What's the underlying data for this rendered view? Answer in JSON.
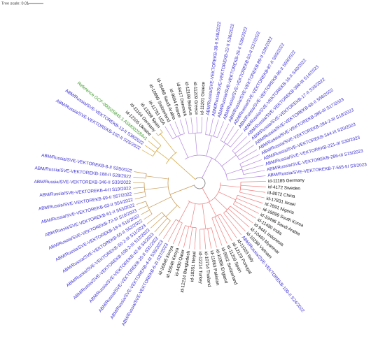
{
  "tree_scale": "Tree scale: 0.01",
  "leaves": [
    {
      "label": "ABM/Russia/SVE-VEKTOREKB-102-II S25/2022",
      "color": "#3a2fd0"
    },
    {
      "label": "ABM/Russia/SVE-VEKTOREKB-13-II S38/2022",
      "color": "#3a2fd0"
    },
    {
      "label": "Reference GCF-000025845.1 ASM002584v1",
      "color": "#3c9a2a"
    },
    {
      "label": "id-12106 Ukraine",
      "color": "#111111"
    },
    {
      "label": "id-11164 Germany",
      "color": "#111111"
    },
    {
      "label": "id-13208 Spain",
      "color": "#111111"
    },
    {
      "label": "id-11781 USA",
      "color": "#111111"
    },
    {
      "label": "id-10999 Switzerland",
      "color": "#111111"
    },
    {
      "label": "id-16468 Saudi Arabia",
      "color": "#111111"
    },
    {
      "label": "id-9694 France",
      "color": "#111111"
    },
    {
      "label": "id-8417 Denmark",
      "color": "#111111"
    },
    {
      "label": "id-12199 Belarus",
      "color": "#111111"
    },
    {
      "label": "id-11209 Greece",
      "color": "#111111"
    },
    {
      "label": "id-11201 Greece",
      "color": "#111111"
    },
    {
      "label": "ABM/Russia/SVE-VEKTOREKB-38-II S48/2022",
      "color": "#3a2fd0"
    },
    {
      "label": "ABM/Russia/SVE-VEKTOREKB-22-II S36/2022",
      "color": "#3a2fd0"
    },
    {
      "label": "ABM/Russia/SVE-VEKTOREKB-26-II S38/2022",
      "color": "#3a2fd0"
    },
    {
      "label": "ABM/Russia/SVE-VEKTOREKB-53-II S37/2022",
      "color": "#3a2fd0"
    },
    {
      "label": "ABM/Russia/SVE-VEKTOREKB-89-II S39/2022",
      "color": "#3a2fd0"
    },
    {
      "label": "ABM/Russia/SVE-VEKTOREKB-87-II S60/2022",
      "color": "#3a2fd0"
    },
    {
      "label": "ABM/Russia/SVE-VEKTOREKB-96-II S59/2022",
      "color": "#3a2fd0"
    },
    {
      "label": "ABM/Russia/SVE-VEKTOREKB-16-II S40/2022",
      "color": "#3a2fd0"
    },
    {
      "label": "ABM/Russia/SVE-VEKTOREKB-386-III S14/2023",
      "color": "#3a2fd0"
    },
    {
      "label": "ABM/Russia/SVE-VEKTOREKB-17-II S33/2022",
      "color": "#3a2fd0"
    },
    {
      "label": "ABM/Russia/SVE-VEKTOREKB-66-II S56/2022",
      "color": "#3a2fd0"
    },
    {
      "label": "ABM/Russia/SVE-VEKTOREKB-385-III S17/2023",
      "color": "#3a2fd0"
    },
    {
      "label": "ABM/Russia/SVE-VEKTOREKB-284-2-III S18/2023",
      "color": "#3a2fd0"
    },
    {
      "label": "ABM/Russia/SVE-VEKTOREKB-344-III S20/2023",
      "color": "#3a2fd0"
    },
    {
      "label": "ABM/Russia/SVE-VEKTOREKB-221-III S30/2023",
      "color": "#3a2fd0"
    },
    {
      "label": "ABM/Russia/SVE-VEKTOREKB-286-III S15/2023",
      "color": "#3a2fd0"
    },
    {
      "label": "ABM/Russia/SVE-VEKTOREKB-7-555-III S3/2023",
      "color": "#3a2fd0"
    },
    {
      "label": "id-11185 Germany",
      "color": "#111111"
    },
    {
      "label": "id-4172 Sweden",
      "color": "#111111"
    },
    {
      "label": "id-8072 China",
      "color": "#111111"
    },
    {
      "label": "id-17831 Israel",
      "color": "#111111"
    },
    {
      "label": "id-7891 Nigeria",
      "color": "#111111"
    },
    {
      "label": "id-18899 South Korea",
      "color": "#111111"
    },
    {
      "label": "id-19496 Saudi Arabia",
      "color": "#111111"
    },
    {
      "label": "id-11480 India",
      "color": "#111111"
    },
    {
      "label": "id-9441 Indonesia",
      "color": "#111111"
    },
    {
      "label": "id-10440 Myanmar",
      "color": "#111111"
    },
    {
      "label": "id-10288 Vietnam",
      "color": "#111111"
    },
    {
      "label": "ABM/Russia/SVE-VEKTOREKB-100-II S24/2022",
      "color": "#3a2fd0"
    },
    {
      "label": "id-11933 Italy",
      "color": "#111111"
    },
    {
      "label": "id-12120 Portugal",
      "color": "#111111"
    },
    {
      "label": "id-11209 Spain",
      "color": "#111111"
    },
    {
      "label": "id-9652 Switzerland",
      "color": "#111111"
    },
    {
      "label": "id-10388 England",
      "color": "#111111"
    },
    {
      "label": "id-11083 Pakistan",
      "color": "#111111"
    },
    {
      "label": "id-10714 Thailand",
      "color": "#111111"
    },
    {
      "label": "id-12214 Turkey",
      "color": "#111111"
    },
    {
      "label": "id-10351 Nepal",
      "color": "#111111"
    },
    {
      "label": "id-12214 Bangladesh",
      "color": "#111111"
    },
    {
      "label": "id-4430 Qatar",
      "color": "#111111"
    },
    {
      "label": "id-16648 Kenya",
      "color": "#111111"
    },
    {
      "label": "id-16845 Kenya",
      "color": "#111111"
    },
    {
      "label": "ABM/Russia/SVE-VEKTOREKB-6-III S37/2023",
      "color": "#3a2fd0"
    },
    {
      "label": "ABM/Russia/SVE-VEKTOREKB-4-III S36/2023",
      "color": "#3a2fd0"
    },
    {
      "label": "ABM/Russia/SVE-VEKTOREKB-25-II S31/2022",
      "color": "#3a2fd0"
    },
    {
      "label": "ABM/Russia/SVE-VEKTOREKB-42-III S4/2023",
      "color": "#3a2fd0"
    },
    {
      "label": "ABM/Russia/SVE-VEKTOREKB-108-2-III S12/2023",
      "color": "#3a2fd0"
    },
    {
      "label": "ABM/Russia/SVE-VEKTOREKB-50-2-III S11/2023",
      "color": "#3a2fd0"
    },
    {
      "label": "ABM/Russia/SVE-VEKTOREKB-55-II S52/2022",
      "color": "#3a2fd0"
    },
    {
      "label": "ABM/Russia/SVE-VEKTOREKB-19-II S16/2022",
      "color": "#3a2fd0"
    },
    {
      "label": "ABM/Russia/SVE-VEKTOREKB-72-III S10/2023",
      "color": "#3a2fd0"
    },
    {
      "label": "ABM/Russia/SVE-VEKTOREKB-61-II S53/2022",
      "color": "#3a2fd0"
    },
    {
      "label": "ABM/Russia/SVE-VEKTOREKB-63-II S54/2022",
      "color": "#3a2fd0"
    },
    {
      "label": "ABM/Russia/SVE-VEKTOREKB-69-II S57/2022",
      "color": "#3a2fd0"
    },
    {
      "label": "ABM/Russia/SVE-VEKTOREKB-4-II S19/2022",
      "color": "#3a2fd0"
    },
    {
      "label": "ABM/Russia/SVE-VEKTOREKB-346-II S33/2022",
      "color": "#3a2fd0"
    },
    {
      "label": "ABM/Russia/SVE-VEKTOREKB-188-II S28/2022",
      "color": "#3a2fd0"
    },
    {
      "label": "ABM/Russia/SVE-VEKTOREKB-8-II S29/2022",
      "color": "#3a2fd0"
    }
  ]
}
